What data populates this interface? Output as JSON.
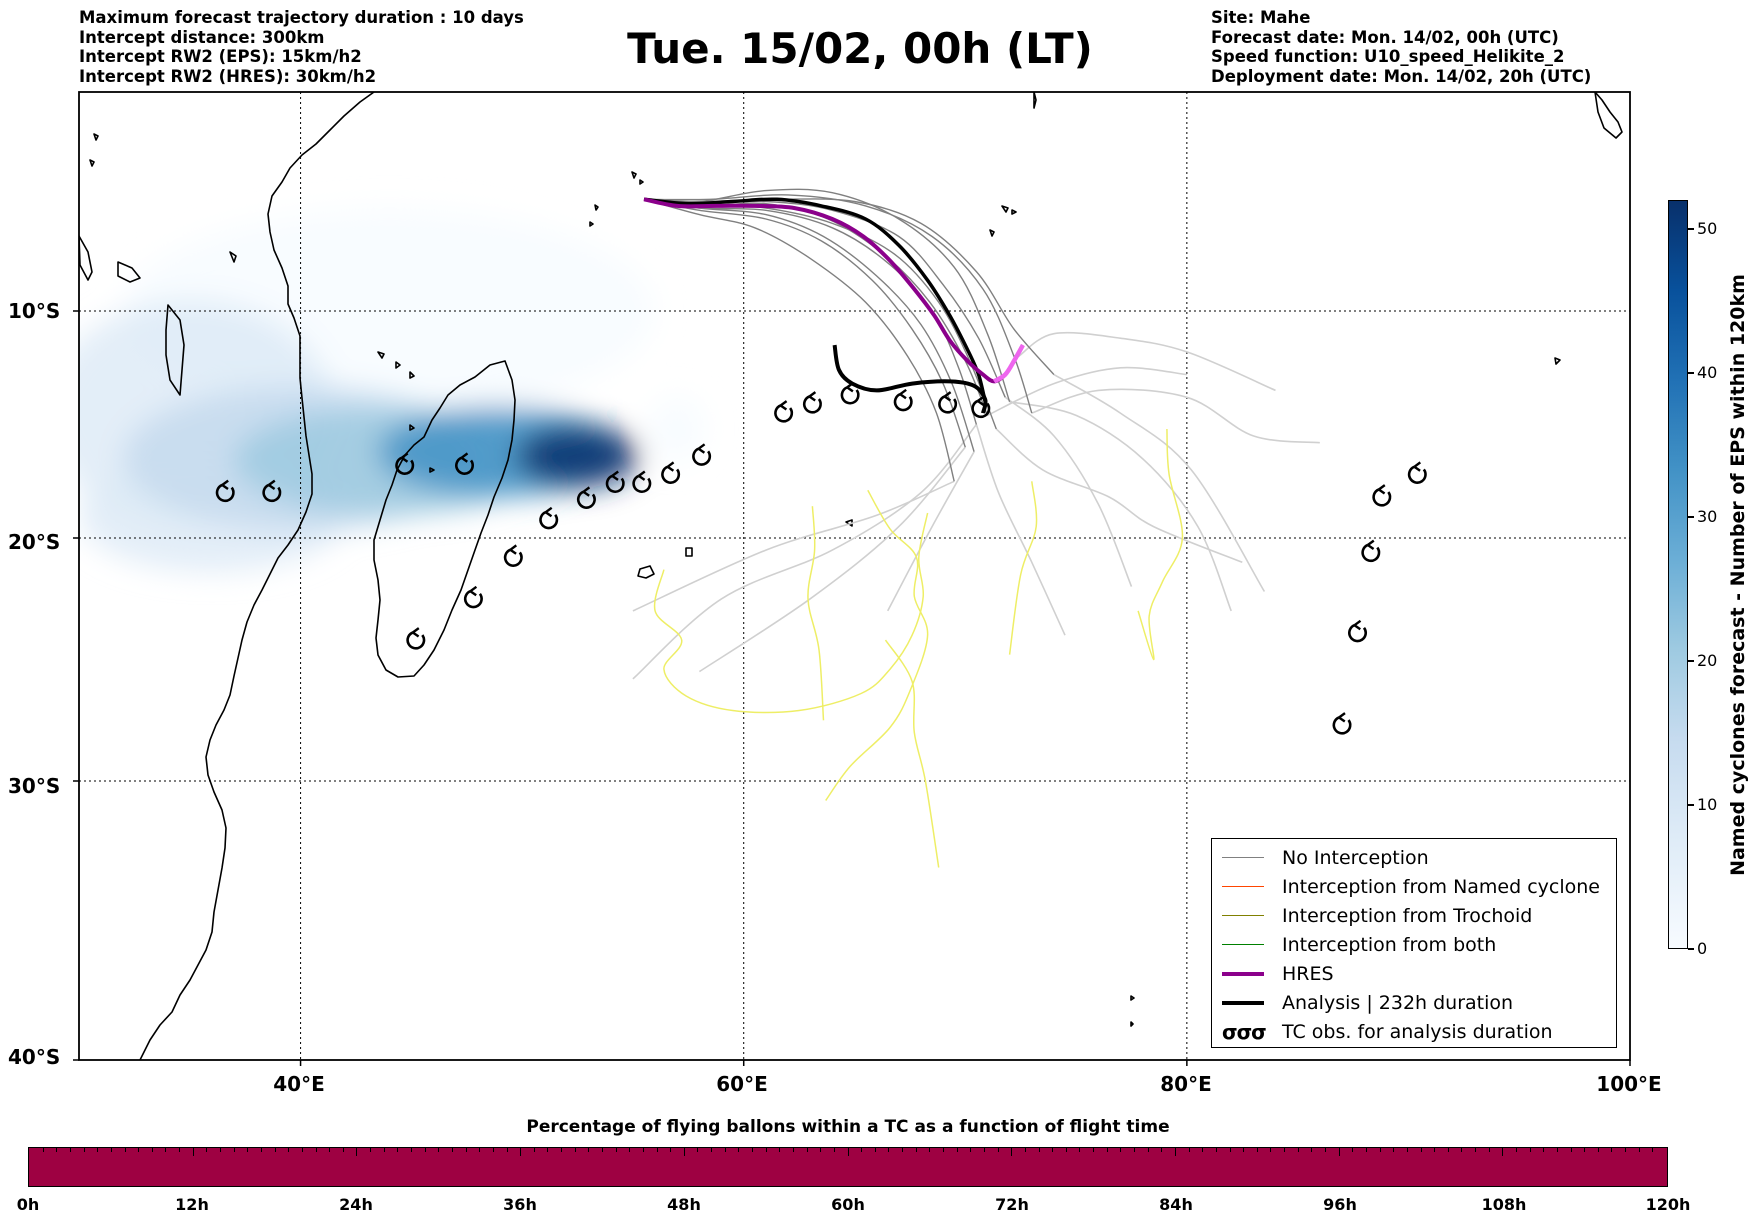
{
  "header_left": [
    "Maximum forecast trajectory duration : 10 days",
    "Intercept distance: 300km",
    "Intercept RW2 (EPS):  15km/h2",
    "Intercept RW2 (HRES): 30km/h2"
  ],
  "title": "Tue. 15/02, 00h (LT)",
  "header_right": [
    "Site: Mahe",
    "Forecast date: Mon. 14/02, 00h (UTC)",
    "Speed function: U10_speed_Helikite_2",
    "Deployment date: Mon. 14/02, 20h (UTC)"
  ],
  "map": {
    "lon_range": [
      30,
      100
    ],
    "lat_range": [
      0,
      -40
    ],
    "lon_ticks": [
      {
        "value": 40,
        "label": "40°E"
      },
      {
        "value": 60,
        "label": "60°E"
      },
      {
        "value": 80,
        "label": "80°E"
      },
      {
        "value": 100,
        "label": "100°E"
      }
    ],
    "lat_ticks": [
      {
        "value": -10,
        "label": "10°S"
      },
      {
        "value": -20,
        "label": "20°S"
      },
      {
        "value": -30,
        "label": "30°S"
      },
      {
        "value": -40,
        "label": "40°S"
      }
    ],
    "grid": "dotted",
    "colors": {
      "no_interception": "#808080",
      "named_cyclone": "#ff4500",
      "trochoid": "#808000",
      "both": "#008000",
      "hres": "#8b008b",
      "analysis": "#000000",
      "ensemble_tail": "#d0d0d0",
      "trochoid_track": "#eeee66"
    }
  },
  "legend": {
    "placement": "lower-right",
    "items": [
      {
        "label": "No Interception",
        "color": "#808080",
        "width": 1.5
      },
      {
        "label": "Interception from Named cyclone",
        "color": "#ff4500",
        "width": 1.5
      },
      {
        "label": "Interception from Trochoid",
        "color": "#808000",
        "width": 1.5
      },
      {
        "label": "Interception from both",
        "color": "#008000",
        "width": 1.5
      },
      {
        "label": "HRES",
        "color": "#8b008b",
        "width": 4
      },
      {
        "label": "Analysis | 232h duration",
        "color": "#000000",
        "width": 4
      }
    ],
    "tc_label": "TC obs. for analysis duration",
    "tc_symbol": "σσσ"
  },
  "colorbar": {
    "label": "Named cyclones forecast - Number of EPS within 120km",
    "min": 0,
    "max": 52,
    "ticks": [
      "0",
      "10",
      "20",
      "30",
      "40",
      "50"
    ],
    "colormap": "Blues"
  },
  "pbar": {
    "title": "Percentage of flying ballons within a TC as a function of flight time",
    "color": "#9e0142",
    "ticks": [
      "0h",
      "12h",
      "24h",
      "36h",
      "48h",
      "60h",
      "72h",
      "84h",
      "96h",
      "108h",
      "120h"
    ]
  },
  "tc_obs": [
    [
      36.6,
      -18.0
    ],
    [
      38.7,
      -18.0
    ],
    [
      44.7,
      -16.8
    ],
    [
      47.4,
      -16.8
    ],
    [
      49.6,
      -20.8
    ],
    [
      51.2,
      -19.2
    ],
    [
      52.9,
      -18.3
    ],
    [
      54.2,
      -17.6
    ],
    [
      55.4,
      -17.6
    ],
    [
      56.7,
      -17.2
    ],
    [
      58.1,
      -16.4
    ],
    [
      61.8,
      -14.5
    ],
    [
      63.1,
      -14.1
    ],
    [
      64.8,
      -13.7
    ],
    [
      67.2,
      -14.0
    ],
    [
      69.2,
      -14.1
    ],
    [
      70.7,
      -14.3
    ],
    [
      45.2,
      -24.2
    ],
    [
      47.8,
      -22.5
    ],
    [
      87.0,
      -27.7
    ],
    [
      87.7,
      -23.9
    ],
    [
      88.3,
      -20.6
    ],
    [
      88.8,
      -18.2
    ],
    [
      90.4,
      -17.2
    ]
  ],
  "analysis_track": [
    [
      64.1,
      -11.5
    ],
    [
      64.3,
      -12.6
    ],
    [
      64.9,
      -13.2
    ],
    [
      66.0,
      -13.5
    ],
    [
      67.6,
      -13.2
    ],
    [
      69.3,
      -13.1
    ],
    [
      70.4,
      -13.3
    ],
    [
      70.9,
      -13.9
    ],
    [
      70.8,
      -14.5
    ]
  ],
  "hres_track": [
    [
      55.5,
      -4.9
    ],
    [
      57.0,
      -5.2
    ],
    [
      58.8,
      -5.2
    ],
    [
      60.5,
      -5.2
    ],
    [
      62.3,
      -5.3
    ],
    [
      64.0,
      -5.8
    ],
    [
      65.4,
      -6.6
    ],
    [
      66.6,
      -7.7
    ],
    [
      67.7,
      -9.0
    ],
    [
      68.6,
      -10.2
    ],
    [
      69.3,
      -11.3
    ],
    [
      70.1,
      -12.2
    ],
    [
      70.8,
      -12.8
    ],
    [
      71.3,
      -13.1
    ],
    [
      71.8,
      -12.8
    ],
    [
      72.2,
      -12.2
    ],
    [
      72.6,
      -11.5
    ]
  ],
  "hres_tail": [
    [
      71.3,
      -13.1
    ],
    [
      71.8,
      -12.8
    ],
    [
      72.2,
      -12.2
    ],
    [
      72.6,
      -11.5
    ]
  ],
  "analysis_forecast": [
    [
      55.5,
      -4.9
    ],
    [
      57.5,
      -5.1
    ],
    [
      59.5,
      -5.0
    ],
    [
      61.5,
      -4.9
    ],
    [
      63.5,
      -5.2
    ],
    [
      65.5,
      -5.8
    ],
    [
      67.0,
      -7.0
    ],
    [
      68.3,
      -8.6
    ],
    [
      69.3,
      -10.2
    ],
    [
      70.1,
      -11.7
    ],
    [
      70.6,
      -12.8
    ],
    [
      70.9,
      -14.0
    ]
  ],
  "ensemble_tracks": [
    [
      [
        55.5,
        -4.9
      ],
      [
        58,
        -5.0
      ],
      [
        61,
        -4.5
      ],
      [
        64,
        -4.6
      ],
      [
        67,
        -5.8
      ],
      [
        69.5,
        -8
      ],
      [
        71,
        -11
      ],
      [
        72,
        -14
      ]
    ],
    [
      [
        55.5,
        -4.9
      ],
      [
        58,
        -5.3
      ],
      [
        61,
        -5.4
      ],
      [
        64,
        -6.2
      ],
      [
        66.5,
        -7.8
      ],
      [
        68.5,
        -10
      ],
      [
        69.7,
        -12.5
      ],
      [
        70.5,
        -15
      ]
    ],
    [
      [
        55.5,
        -4.9
      ],
      [
        58,
        -5.1
      ],
      [
        61,
        -5.0
      ],
      [
        64,
        -5.4
      ],
      [
        67,
        -6.6
      ],
      [
        69,
        -8.8
      ],
      [
        70.6,
        -11.2
      ],
      [
        71.8,
        -13.8
      ]
    ],
    [
      [
        55.5,
        -4.9
      ],
      [
        58,
        -5.4
      ],
      [
        61,
        -5.8
      ],
      [
        63.5,
        -6.8
      ],
      [
        65.8,
        -8.6
      ],
      [
        67.6,
        -10.8
      ],
      [
        69,
        -13.2
      ],
      [
        70,
        -16
      ]
    ],
    [
      [
        55.5,
        -4.9
      ],
      [
        58.5,
        -4.9
      ],
      [
        62,
        -4.7
      ],
      [
        65.5,
        -5.2
      ],
      [
        68.5,
        -6.6
      ],
      [
        70.8,
        -9
      ],
      [
        72.2,
        -12
      ],
      [
        73,
        -14.5
      ]
    ],
    [
      [
        55.5,
        -4.9
      ],
      [
        58,
        -5.6
      ],
      [
        60.5,
        -6.2
      ],
      [
        63,
        -7.6
      ],
      [
        65.5,
        -9.6
      ],
      [
        67.4,
        -12
      ],
      [
        68.7,
        -14.5
      ],
      [
        69.5,
        -17.5
      ]
    ],
    [
      [
        55.5,
        -4.9
      ],
      [
        58,
        -5.2
      ],
      [
        61,
        -5.1
      ],
      [
        63.8,
        -5.8
      ],
      [
        66.3,
        -7.4
      ],
      [
        68.4,
        -9.6
      ],
      [
        70,
        -12.2
      ],
      [
        71,
        -14.6
      ]
    ],
    [
      [
        55.5,
        -4.9
      ],
      [
        58,
        -5.0
      ],
      [
        61.5,
        -4.9
      ],
      [
        65,
        -5.0
      ],
      [
        68,
        -6.0
      ],
      [
        70.5,
        -8.2
      ],
      [
        72.2,
        -10.8
      ],
      [
        74,
        -12.8
      ]
    ],
    [
      [
        55.5,
        -4.9
      ],
      [
        58,
        -5.3
      ],
      [
        61,
        -5.6
      ],
      [
        63.6,
        -6.6
      ],
      [
        66,
        -8.4
      ],
      [
        68,
        -10.6
      ],
      [
        69.4,
        -13.2
      ],
      [
        70.4,
        -16.2
      ]
    ],
    [
      [
        55.5,
        -4.9
      ],
      [
        58,
        -5.1
      ],
      [
        61,
        -5.3
      ],
      [
        64,
        -6.0
      ],
      [
        66.8,
        -7.4
      ],
      [
        68.8,
        -9.6
      ],
      [
        70.2,
        -12.2
      ],
      [
        71.4,
        -15.2
      ]
    ]
  ],
  "ensemble_tails": [
    [
      [
        72,
        -14
      ],
      [
        75,
        -14.6
      ],
      [
        78,
        -16.5
      ],
      [
        80.5,
        -19.5
      ],
      [
        82,
        -23
      ]
    ],
    [
      [
        70.5,
        -15
      ],
      [
        68,
        -18
      ],
      [
        64,
        -20.5
      ],
      [
        59,
        -22.5
      ],
      [
        55,
        -25.8
      ]
    ],
    [
      [
        71.8,
        -13.8
      ],
      [
        74,
        -15.5
      ],
      [
        76,
        -18.5
      ],
      [
        77.5,
        -22
      ]
    ],
    [
      [
        70,
        -16
      ],
      [
        67,
        -19.5
      ],
      [
        63,
        -22.5
      ],
      [
        58,
        -25.5
      ]
    ],
    [
      [
        73,
        -14.5
      ],
      [
        76,
        -13.5
      ],
      [
        80,
        -13.8
      ],
      [
        83,
        -15.5
      ],
      [
        86,
        -15.8
      ]
    ],
    [
      [
        69.5,
        -17.5
      ],
      [
        66,
        -19
      ],
      [
        61,
        -20.5
      ],
      [
        55,
        -23
      ]
    ],
    [
      [
        71,
        -14.6
      ],
      [
        74,
        -13.2
      ],
      [
        77,
        -12.5
      ],
      [
        80,
        -12.8
      ]
    ],
    [
      [
        74,
        -12.8
      ],
      [
        77,
        -14.5
      ],
      [
        80.2,
        -17
      ],
      [
        83.5,
        -22.2
      ]
    ],
    [
      [
        70.4,
        -16.2
      ],
      [
        68.5,
        -19.5
      ],
      [
        66.5,
        -23
      ]
    ],
    [
      [
        71.4,
        -15.2
      ],
      [
        73.5,
        -17
      ],
      [
        76.5,
        -18.2
      ],
      [
        78.5,
        -19.5
      ],
      [
        82.5,
        -21
      ]
    ],
    [
      [
        72.4,
        -12
      ],
      [
        74,
        -11
      ],
      [
        77,
        -11.2
      ],
      [
        80,
        -11.8
      ],
      [
        84,
        -13.5
      ]
    ],
    [
      [
        70.5,
        -15
      ],
      [
        71.5,
        -18
      ],
      [
        73,
        -21
      ],
      [
        74.5,
        -24
      ]
    ]
  ],
  "trochoid_tracks": [
    [
      [
        63.1,
        -18.6
      ],
      [
        63.2,
        -20.5
      ],
      [
        62.9,
        -22.5
      ],
      [
        63.4,
        -24.6
      ],
      [
        63.6,
        -27.5
      ]
    ],
    [
      [
        65.6,
        -17.9
      ],
      [
        66.6,
        -19.6
      ],
      [
        67.8,
        -20.8
      ],
      [
        67.7,
        -22.4
      ],
      [
        68.3,
        -24
      ],
      [
        67.5,
        -26.3
      ],
      [
        66.6,
        -27.8
      ],
      [
        64.8,
        -29.4
      ],
      [
        63.7,
        -30.7
      ]
    ],
    [
      [
        68.3,
        -18.9
      ],
      [
        67.9,
        -20.8
      ],
      [
        68.1,
        -22.4
      ],
      [
        67.6,
        -24
      ],
      [
        66.6,
        -25.4
      ],
      [
        65.3,
        -26.4
      ],
      [
        62.5,
        -27.1
      ],
      [
        59.5,
        -27.1
      ],
      [
        57.4,
        -26.5
      ],
      [
        56.4,
        -25.4
      ],
      [
        57.2,
        -24.2
      ],
      [
        56,
        -23
      ],
      [
        56.4,
        -21.3
      ]
    ],
    [
      [
        66.4,
        -24.2
      ],
      [
        67.6,
        -25.9
      ],
      [
        67.7,
        -28
      ],
      [
        68.2,
        -30
      ],
      [
        68.8,
        -33.1
      ]
    ],
    [
      [
        73,
        -17.5
      ],
      [
        73.2,
        -19.5
      ],
      [
        72.5,
        -21.5
      ],
      [
        72,
        -24.8
      ]
    ],
    [
      [
        79.1,
        -15.2
      ],
      [
        79.2,
        -17.2
      ],
      [
        79.8,
        -20
      ],
      [
        78.9,
        -21.8
      ],
      [
        78.3,
        -23.2
      ],
      [
        78.5,
        -25
      ],
      [
        77.8,
        -23
      ]
    ]
  ],
  "density_blobs": [
    {
      "lon": 52.5,
      "lat": -16.4,
      "rx": 2.8,
      "ry": 1.4,
      "level": 52
    },
    {
      "lon": 49.0,
      "lat": -16.2,
      "rx": 5.5,
      "ry": 2.0,
      "level": 30
    },
    {
      "lon": 44.0,
      "lat": -16.6,
      "rx": 7.0,
      "ry": 2.4,
      "level": 20
    },
    {
      "lon": 40.0,
      "lat": -16.5,
      "rx": 8.0,
      "ry": 3.2,
      "level": 12
    },
    {
      "lon": 35.0,
      "lat": -14.5,
      "rx": 6.5,
      "ry": 5.0,
      "level": 6
    },
    {
      "lon": 44.0,
      "lat": -10.0,
      "rx": 12.0,
      "ry": 4.5,
      "level": 3
    },
    {
      "lon": 36.0,
      "lat": -19.0,
      "rx": 6.0,
      "ry": 2.4,
      "level": 4
    },
    {
      "lon": 57.0,
      "lat": -15.2,
      "rx": 1.3,
      "ry": 1.5,
      "level": 2
    }
  ]
}
